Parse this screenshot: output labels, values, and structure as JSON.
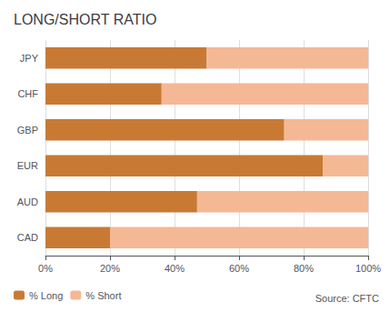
{
  "chart_data": {
    "type": "bar",
    "orientation": "horizontal",
    "stacked": true,
    "title": "LONG/SHORT RATIO",
    "categories": [
      "JPY",
      "CHF",
      "GBP",
      "EUR",
      "AUD",
      "CAD"
    ],
    "series": [
      {
        "name": "% Long",
        "color": "#C87A35",
        "values": [
          50,
          36,
          74,
          86,
          47,
          20
        ]
      },
      {
        "name": "% Short",
        "color": "#F5B895",
        "values": [
          50,
          64,
          26,
          14,
          53,
          80
        ]
      }
    ],
    "xlim": [
      0,
      100
    ],
    "xticks": [
      {
        "value": 0,
        "label": "0%"
      },
      {
        "value": 20,
        "label": "20%"
      },
      {
        "value": 40,
        "label": "40%"
      },
      {
        "value": 60,
        "label": "60%"
      },
      {
        "value": 80,
        "label": "80%"
      },
      {
        "value": 100,
        "label": "100%"
      }
    ],
    "grid": true,
    "legend": "lower left",
    "annotations": [
      "Source: CFTC"
    ]
  }
}
